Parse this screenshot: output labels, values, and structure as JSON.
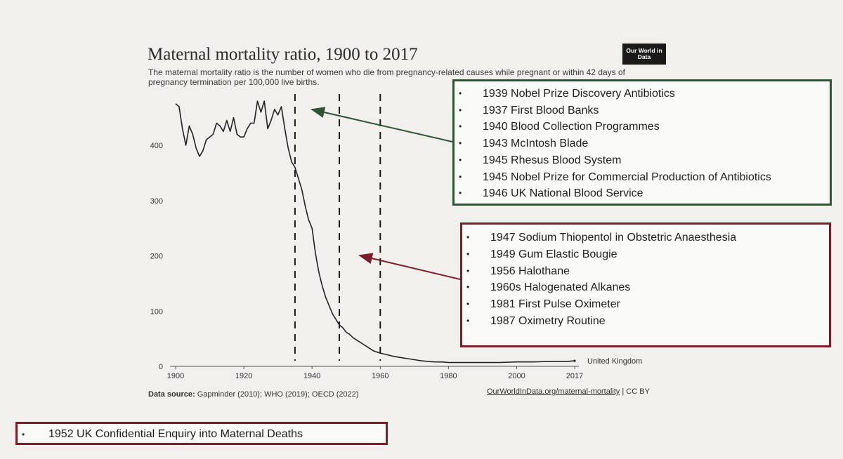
{
  "header": {
    "title": "Maternal mortality ratio, 1900 to 2017",
    "subtitle": "The maternal mortality ratio is the number of women who die from pregnancy-related causes while pregnant or within 42 days of pregnancy termination per 100,000 live births.",
    "logo_text": "Our World in Data"
  },
  "footer": {
    "source_label": "Data source:",
    "source_text": "Gapminder (2010); WHO (2019); OECD (2022)",
    "link_text": "OurWorldInData.org/maternal-mortality",
    "license_text": "| CC BY"
  },
  "annotations": {
    "green_box": {
      "color": "#2e5335",
      "items": [
        "1939 Nobel Prize Discovery Antibiotics",
        "1937 First Blood Banks",
        "1940 Blood Collection Programmes",
        "1943 McIntosh Blade",
        "1945 Rhesus Blood System",
        "1945 Nobel Prize for Commercial Production of Antibiotics",
        "1946 UK National Blood Service"
      ]
    },
    "red_box": {
      "color": "#7b1e27",
      "items": [
        "1947 Sodium Thiopentol in Obstetric Anaesthesia",
        "1949 Gum Elastic Bougie",
        "1956 Halothane",
        "1960s Halogenated Alkanes",
        "1981 First Pulse Oximeter",
        "1987 Oximetry Routine"
      ]
    },
    "bottom_box": {
      "color": "#7b1e27",
      "items": [
        "1952 UK Confidential Enquiry into Maternal Deaths"
      ]
    },
    "vertical_markers_years": [
      1935,
      1948,
      1960
    ]
  },
  "chart_data": {
    "type": "line",
    "title": "Maternal mortality ratio, 1900 to 2017",
    "xlabel": "",
    "ylabel": "",
    "xlim": [
      1900,
      2017
    ],
    "ylim": [
      0,
      480
    ],
    "x_ticks": [
      "1900",
      "1920",
      "1940",
      "1960",
      "1980",
      "2000",
      "2017"
    ],
    "x_tick_values": [
      1900,
      1920,
      1940,
      1960,
      1980,
      2000,
      2017
    ],
    "y_ticks": [
      "0",
      "100",
      "200",
      "300",
      "400"
    ],
    "y_tick_values": [
      0,
      100,
      200,
      300,
      400
    ],
    "grid": false,
    "series": [
      {
        "name": "United Kingdom",
        "color": "#222222",
        "x": [
          1900,
          1901,
          1902,
          1903,
          1904,
          1905,
          1906,
          1907,
          1908,
          1909,
          1910,
          1911,
          1912,
          1913,
          1914,
          1915,
          1916,
          1917,
          1918,
          1919,
          1920,
          1921,
          1922,
          1923,
          1924,
          1925,
          1926,
          1927,
          1928,
          1929,
          1930,
          1931,
          1932,
          1933,
          1934,
          1935,
          1936,
          1937,
          1938,
          1939,
          1940,
          1941,
          1942,
          1943,
          1944,
          1945,
          1946,
          1947,
          1948,
          1949,
          1950,
          1951,
          1952,
          1953,
          1954,
          1955,
          1956,
          1957,
          1958,
          1959,
          1960,
          1962,
          1964,
          1966,
          1968,
          1970,
          1972,
          1974,
          1976,
          1978,
          1980,
          1985,
          1990,
          1995,
          2000,
          2005,
          2010,
          2015,
          2017
        ],
        "y": [
          475,
          470,
          430,
          400,
          435,
          420,
          395,
          380,
          390,
          410,
          415,
          420,
          440,
          435,
          425,
          445,
          425,
          450,
          420,
          415,
          415,
          430,
          440,
          440,
          480,
          460,
          480,
          430,
          445,
          465,
          455,
          470,
          430,
          395,
          370,
          360,
          340,
          320,
          290,
          265,
          250,
          205,
          170,
          145,
          125,
          110,
          95,
          85,
          75,
          70,
          62,
          58,
          52,
          48,
          44,
          40,
          36,
          32,
          28,
          26,
          24,
          21,
          18,
          16,
          14,
          12,
          10,
          9,
          8,
          8,
          7,
          7,
          7,
          7,
          8,
          8,
          9,
          9,
          10
        ]
      }
    ]
  }
}
